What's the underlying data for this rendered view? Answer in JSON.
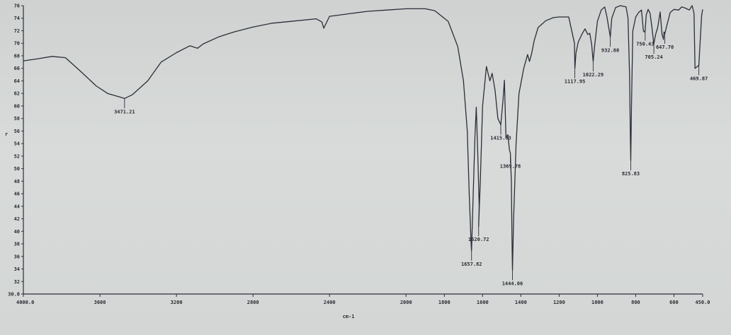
{
  "chart_data": {
    "type": "line",
    "title": "",
    "xlabel": "cm-1",
    "ylabel": "",
    "y_axis_side_mark": "r",
    "xlim": [
      4000,
      450
    ],
    "ylim": [
      30,
      76
    ],
    "x_reversed": true,
    "grid": false,
    "x_ticks": [
      {
        "value": 4000,
        "label": "4000.0"
      },
      {
        "value": 3600,
        "label": "3600"
      },
      {
        "value": 3200,
        "label": "3200"
      },
      {
        "value": 2800,
        "label": "2800"
      },
      {
        "value": 2400,
        "label": "2400"
      },
      {
        "value": 2000,
        "label": "2000"
      },
      {
        "value": 1800,
        "label": "1800"
      },
      {
        "value": 1600,
        "label": "1600"
      },
      {
        "value": 1400,
        "label": "1400"
      },
      {
        "value": 1200,
        "label": "1200"
      },
      {
        "value": 1000,
        "label": "1000"
      },
      {
        "value": 800,
        "label": "800"
      },
      {
        "value": 600,
        "label": "600"
      },
      {
        "value": 450,
        "label": "450.0"
      }
    ],
    "y_ticks": [
      {
        "value": 76,
        "label": "76"
      },
      {
        "value": 74,
        "label": "74"
      },
      {
        "value": 72,
        "label": "72"
      },
      {
        "value": 70,
        "label": "70"
      },
      {
        "value": 68,
        "label": "68"
      },
      {
        "value": 66,
        "label": "66"
      },
      {
        "value": 64,
        "label": "64"
      },
      {
        "value": 62,
        "label": "62"
      },
      {
        "value": 60,
        "label": "60"
      },
      {
        "value": 58,
        "label": "58"
      },
      {
        "value": 56,
        "label": "56"
      },
      {
        "value": 54,
        "label": "54"
      },
      {
        "value": 52,
        "label": "52"
      },
      {
        "value": 50,
        "label": "50"
      },
      {
        "value": 48,
        "label": "48"
      },
      {
        "value": 46,
        "label": "46"
      },
      {
        "value": 44,
        "label": "44"
      },
      {
        "value": 42,
        "label": "42"
      },
      {
        "value": 40,
        "label": "40"
      },
      {
        "value": 38,
        "label": "38"
      },
      {
        "value": 36,
        "label": "36"
      },
      {
        "value": 34,
        "label": "34"
      },
      {
        "value": 32,
        "label": "32"
      },
      {
        "value": 30,
        "label": "30.0"
      }
    ],
    "series": [
      {
        "color": "#2b2e38",
        "points": [
          [
            4000,
            67.2
          ],
          [
            3930,
            67.5
          ],
          [
            3850,
            67.9
          ],
          [
            3780,
            67.7
          ],
          [
            3700,
            65.5
          ],
          [
            3620,
            63.2
          ],
          [
            3560,
            62.0
          ],
          [
            3471,
            61.2
          ],
          [
            3430,
            61.8
          ],
          [
            3350,
            64.0
          ],
          [
            3280,
            67.0
          ],
          [
            3200,
            68.5
          ],
          [
            3130,
            69.6
          ],
          [
            3090,
            69.2
          ],
          [
            3060,
            69.9
          ],
          [
            2980,
            71.0
          ],
          [
            2900,
            71.8
          ],
          [
            2800,
            72.6
          ],
          [
            2700,
            73.2
          ],
          [
            2600,
            73.5
          ],
          [
            2470,
            73.9
          ],
          [
            2440,
            73.4
          ],
          [
            2430,
            72.4
          ],
          [
            2400,
            74.3
          ],
          [
            2300,
            74.7
          ],
          [
            2200,
            75.1
          ],
          [
            2100,
            75.3
          ],
          [
            2000,
            75.5
          ],
          [
            1900,
            75.5
          ],
          [
            1850,
            75.2
          ],
          [
            1780,
            73.5
          ],
          [
            1730,
            69.5
          ],
          [
            1700,
            64.0
          ],
          [
            1680,
            56.0
          ],
          [
            1670,
            46.0
          ],
          [
            1660,
            38.0
          ],
          [
            1657.82,
            36.9
          ],
          [
            1650,
            45.0
          ],
          [
            1640,
            55.0
          ],
          [
            1633,
            59.8
          ],
          [
            1625,
            52.0
          ],
          [
            1618,
            44.0
          ],
          [
            1620.72,
            40.8
          ],
          [
            1612,
            48.0
          ],
          [
            1600,
            60.0
          ],
          [
            1580,
            66.3
          ],
          [
            1562,
            64.0
          ],
          [
            1550,
            65.2
          ],
          [
            1535,
            62.5
          ],
          [
            1520,
            58.0
          ],
          [
            1505,
            57.0
          ],
          [
            1493,
            61.0
          ],
          [
            1486,
            64.1
          ],
          [
            1478,
            55.0
          ],
          [
            1468,
            55.4
          ],
          [
            1460,
            53.0
          ],
          [
            1455,
            52.5
          ],
          [
            1450,
            48.0
          ],
          [
            1446,
            38.0
          ],
          [
            1444.06,
            33.8
          ],
          [
            1438,
            42.0
          ],
          [
            1425,
            54.0
          ],
          [
            1410,
            62.0
          ],
          [
            1385,
            66.0
          ],
          [
            1365,
            68.2
          ],
          [
            1355,
            67.1
          ],
          [
            1345,
            68.2
          ],
          [
            1330,
            70.5
          ],
          [
            1310,
            72.5
          ],
          [
            1270,
            73.6
          ],
          [
            1230,
            74.1
          ],
          [
            1200,
            74.2
          ],
          [
            1150,
            74.2
          ],
          [
            1120,
            70.0
          ],
          [
            1117.95,
            66.0
          ],
          [
            1112,
            68.5
          ],
          [
            1100,
            70.2
          ],
          [
            1080,
            71.5
          ],
          [
            1065,
            72.3
          ],
          [
            1050,
            71.4
          ],
          [
            1040,
            71.6
          ],
          [
            1030,
            69.8
          ],
          [
            1022.29,
            67.1
          ],
          [
            1015,
            69.5
          ],
          [
            1000,
            73.5
          ],
          [
            980,
            75.3
          ],
          [
            962,
            75.8
          ],
          [
            950,
            74.2
          ],
          [
            932.8,
            71.0
          ],
          [
            925,
            74.0
          ],
          [
            905,
            75.7
          ],
          [
            880,
            76.0
          ],
          [
            850,
            75.8
          ],
          [
            840,
            74.0
          ],
          [
            832,
            65.0
          ],
          [
            828,
            55.0
          ],
          [
            825.83,
            51.3
          ],
          [
            822,
            60.0
          ],
          [
            815,
            72.0
          ],
          [
            800,
            74.2
          ],
          [
            785,
            74.9
          ],
          [
            770,
            75.3
          ],
          [
            760,
            72.0
          ],
          [
            755,
            71.8
          ],
          [
            750.43,
            72.0
          ],
          [
            745,
            74.5
          ],
          [
            735,
            75.4
          ],
          [
            725,
            74.8
          ],
          [
            715,
            72.5
          ],
          [
            705.24,
            69.9
          ],
          [
            695,
            71.5
          ],
          [
            685,
            72.5
          ],
          [
            672,
            75.0
          ],
          [
            668,
            73.5
          ],
          [
            662,
            71.3
          ],
          [
            658,
            71.0
          ],
          [
            655,
            70.6
          ],
          [
            652,
            71.8
          ],
          [
            647.7,
            71.5
          ],
          [
            640,
            72.5
          ],
          [
            620,
            74.9
          ],
          [
            600,
            75.4
          ],
          [
            575,
            75.3
          ],
          [
            560,
            75.8
          ],
          [
            540,
            75.6
          ],
          [
            520,
            75.3
          ],
          [
            505,
            76.0
          ],
          [
            495,
            74.8
          ],
          [
            490,
            66.0
          ],
          [
            469.87,
            66.5
          ],
          [
            462,
            71.0
          ],
          [
            455,
            74.5
          ],
          [
            450,
            75.4
          ]
        ]
      }
    ],
    "annotations": [
      {
        "x": 3471.21,
        "y": 61.2,
        "text": "3471.21",
        "side": "below"
      },
      {
        "x": 1657.82,
        "y": 36.9,
        "text": "1657.82",
        "side": "below"
      },
      {
        "x": 1620.72,
        "y": 40.8,
        "text": "1620.72",
        "side": "below"
      },
      {
        "x": 1444.06,
        "y": 33.8,
        "text": "1444.06",
        "side": "below"
      },
      {
        "x": 1505.0,
        "y": 57.0,
        "text": "1415.63",
        "side": "below"
      },
      {
        "x": 1455.0,
        "y": 52.5,
        "text": "1369.78",
        "side": "below"
      },
      {
        "x": 1117.95,
        "y": 66.0,
        "text": "1117.95",
        "side": "below"
      },
      {
        "x": 1022.29,
        "y": 67.1,
        "text": "1022.29",
        "side": "below"
      },
      {
        "x": 932.8,
        "y": 71.0,
        "text": "932.80",
        "side": "below"
      },
      {
        "x": 825.83,
        "y": 51.3,
        "text": "825.83",
        "side": "below"
      },
      {
        "x": 750.43,
        "y": 72.0,
        "text": "750.43",
        "side": "below"
      },
      {
        "x": 705.24,
        "y": 69.9,
        "text": "705.24",
        "side": "below"
      },
      {
        "x": 647.7,
        "y": 71.5,
        "text": "647.70",
        "side": "below"
      },
      {
        "x": 469.87,
        "y": 66.5,
        "text": "469.87",
        "side": "below"
      }
    ]
  }
}
